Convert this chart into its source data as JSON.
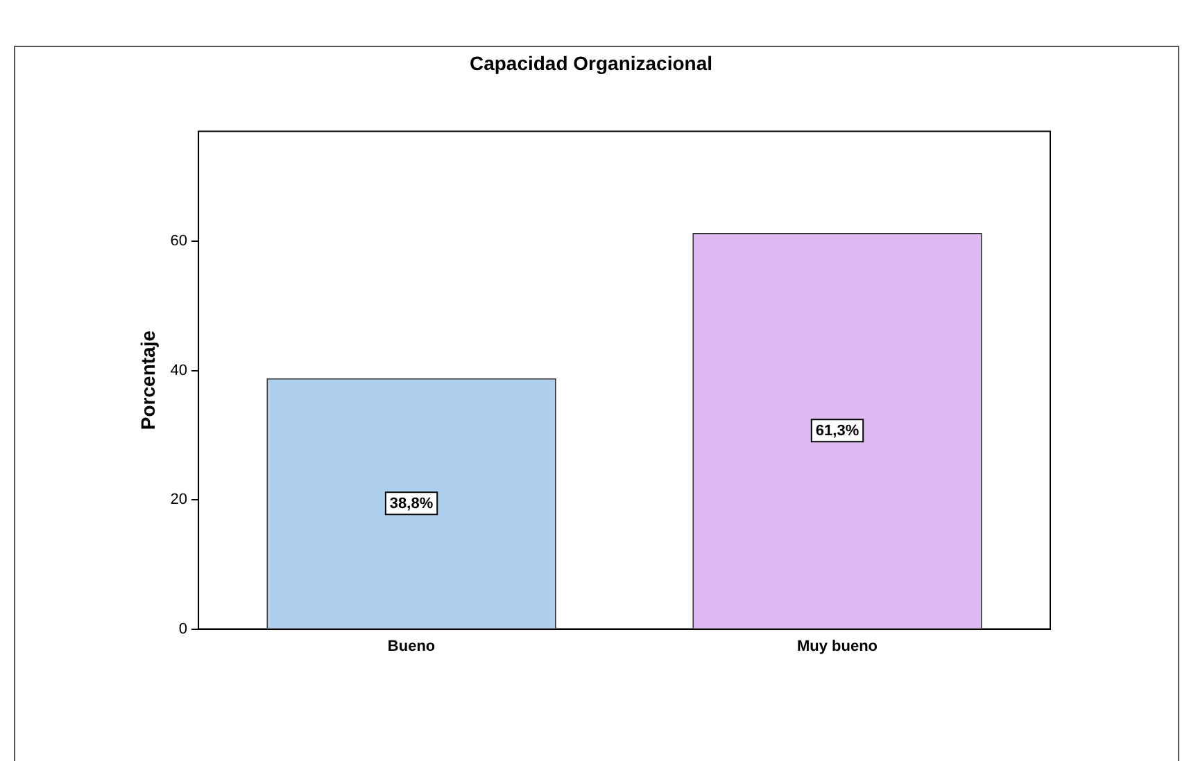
{
  "chart_data": {
    "type": "bar",
    "title": "Capacidad Organizacional",
    "ylabel": "Porcentaje",
    "categories": [
      "Bueno",
      "Muy bueno"
    ],
    "values": [
      38.8,
      61.3
    ],
    "colors": [
      "#aed0ee",
      "#dfbaf2"
    ],
    "value_labels": [
      "38,8%",
      "61,3%"
    ],
    "ylim": [
      0,
      77
    ],
    "yticks": [
      0,
      20,
      40,
      60
    ],
    "grid": false,
    "legend": false
  }
}
